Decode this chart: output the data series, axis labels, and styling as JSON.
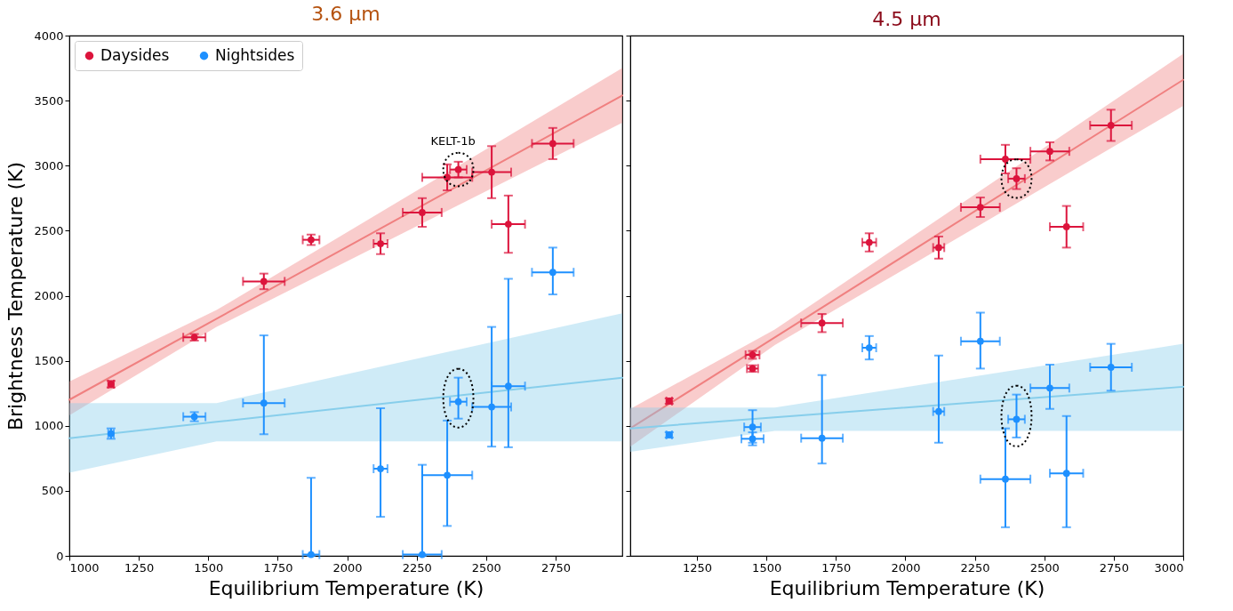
{
  "chart_data": [
    {
      "type": "scatter",
      "title": "3.6 μm",
      "xlabel": "Equilibrium Temperature (K)",
      "ylabel": "Brightness Temperature (K)",
      "xlim": [
        1000,
        2990
      ],
      "xticks": [
        1000,
        1250,
        1500,
        1750,
        2000,
        2250,
        2500,
        2750
      ],
      "ylim": [
        0,
        4000
      ],
      "yticks": [
        0,
        500,
        1000,
        1500,
        2000,
        2500,
        3000,
        3500,
        4000
      ],
      "legend": "top left",
      "series": [
        {
          "name": "Daysides",
          "color": "#dc143c",
          "marker": "circle",
          "x": [
            1150,
            1450,
            1700,
            1870,
            2120,
            2270,
            2360,
            2400,
            2520,
            2580,
            2740
          ],
          "values": [
            1320,
            1680,
            2110,
            2430,
            2400,
            2640,
            2910,
            2970,
            2950,
            2550,
            3170
          ],
          "errors": [
            25,
            25,
            60,
            40,
            80,
            110,
            100,
            60,
            200,
            220,
            120
          ],
          "xerrors": [
            10,
            40,
            75,
            30,
            25,
            70,
            90,
            30,
            70,
            60,
            75
          ]
        },
        {
          "name": "Nightsides",
          "color": "#1e90ff",
          "marker": "circle",
          "x": [
            1150,
            1450,
            1700,
            1870,
            2120,
            2270,
            2360,
            2400,
            2520,
            2580,
            2740
          ],
          "values": [
            940,
            1070,
            1175,
            10,
            670,
            10,
            620,
            1185,
            1145,
            1305,
            2180
          ],
          "errors": [
            40,
            35,
            [
              935,
              1695
            ],
            [
              0,
              600
            ],
            [
              300,
              1135
            ],
            [
              0,
              700
            ],
            [
              230,
              1040
            ],
            [
              1055,
              1370
            ],
            [
              840,
              1760
            ],
            [
              835,
              2130
            ],
            [
              2010,
              2370
            ]
          ],
          "xerrors": [
            10,
            40,
            75,
            30,
            25,
            70,
            90,
            30,
            70,
            60,
            75
          ]
        },
        {
          "type": "line",
          "color": "#f08080",
          "x": [
            1000,
            1530,
            2990
          ],
          "values": [
            1200,
            1823,
            3540
          ],
          "lower": [
            1080,
            1760,
            3330
          ],
          "upper": [
            1340,
            1890,
            3750
          ]
        },
        {
          "type": "line",
          "color": "#87ceeb",
          "x": [
            1000,
            1530,
            2990
          ],
          "values": [
            905,
            1030,
            1370
          ],
          "lower": [
            640,
            880,
            880
          ],
          "upper": [
            1175,
            1175,
            1865
          ]
        }
      ],
      "annotations": [
        {
          "text": "KELT-1b",
          "x": 2400,
          "y": 2970
        }
      ]
    },
    {
      "type": "scatter",
      "title": "4.5 μm",
      "xlabel": "Equilibrium Temperature (K)",
      "xlim": [
        1010,
        3000
      ],
      "xticks": [
        1250,
        1500,
        1750,
        2000,
        2250,
        2500,
        2750,
        3000
      ],
      "ylim": [
        0,
        4000
      ],
      "yticks": [
        0,
        500,
        1000,
        1500,
        2000,
        2500,
        3000,
        3500,
        4000
      ],
      "tick_labels": "x",
      "series": [
        {
          "name": "Daysides",
          "color": "#dc143c",
          "marker": "circle",
          "x": [
            1150,
            1450,
            1450,
            1700,
            1870,
            2120,
            2270,
            2360,
            2400,
            2520,
            2580,
            2740
          ],
          "values": [
            1190,
            1545,
            1440,
            1790,
            2410,
            2370,
            2680,
            3050,
            2900,
            3110,
            2530,
            3310
          ],
          "errors": [
            20,
            30,
            25,
            70,
            70,
            85,
            75,
            110,
            80,
            70,
            160,
            120
          ],
          "xerrors": [
            10,
            25,
            20,
            75,
            25,
            20,
            70,
            90,
            30,
            70,
            60,
            75
          ]
        },
        {
          "name": "Nightsides",
          "color": "#1e90ff",
          "marker": "circle",
          "x": [
            1150,
            1450,
            1450,
            1700,
            1870,
            2120,
            2270,
            2360,
            2400,
            2520,
            2580,
            2740
          ],
          "values": [
            930,
            990,
            900,
            905,
            1600,
            1110,
            1650,
            590,
            1050,
            1290,
            635,
            1450
          ],
          "errors": [
            20,
            [
              870,
              1120
            ],
            [
              850,
              950
            ],
            [
              710,
              1390
            ],
            90,
            [
              870,
              1540
            ],
            [
              1440,
              1870
            ],
            [
              220,
              980
            ],
            [
              910,
              1240
            ],
            [
              1130,
              1470
            ],
            [
              220,
              1075
            ],
            [
              1270,
              1630
            ]
          ],
          "xerrors": [
            10,
            30,
            40,
            75,
            25,
            20,
            70,
            90,
            30,
            70,
            60,
            75
          ]
        },
        {
          "type": "line",
          "color": "#f08080",
          "x": [
            1010,
            1530,
            3000
          ],
          "values": [
            980,
            1680,
            3660
          ],
          "lower": [
            840,
            1620,
            3460
          ],
          "upper": [
            1130,
            1740,
            3860
          ]
        },
        {
          "type": "line",
          "color": "#87ceeb",
          "x": [
            1010,
            1530,
            3000
          ],
          "values": [
            980,
            1065,
            1300
          ],
          "lower": [
            800,
            960,
            960
          ],
          "upper": [
            1140,
            1140,
            1630
          ]
        }
      ]
    }
  ]
}
